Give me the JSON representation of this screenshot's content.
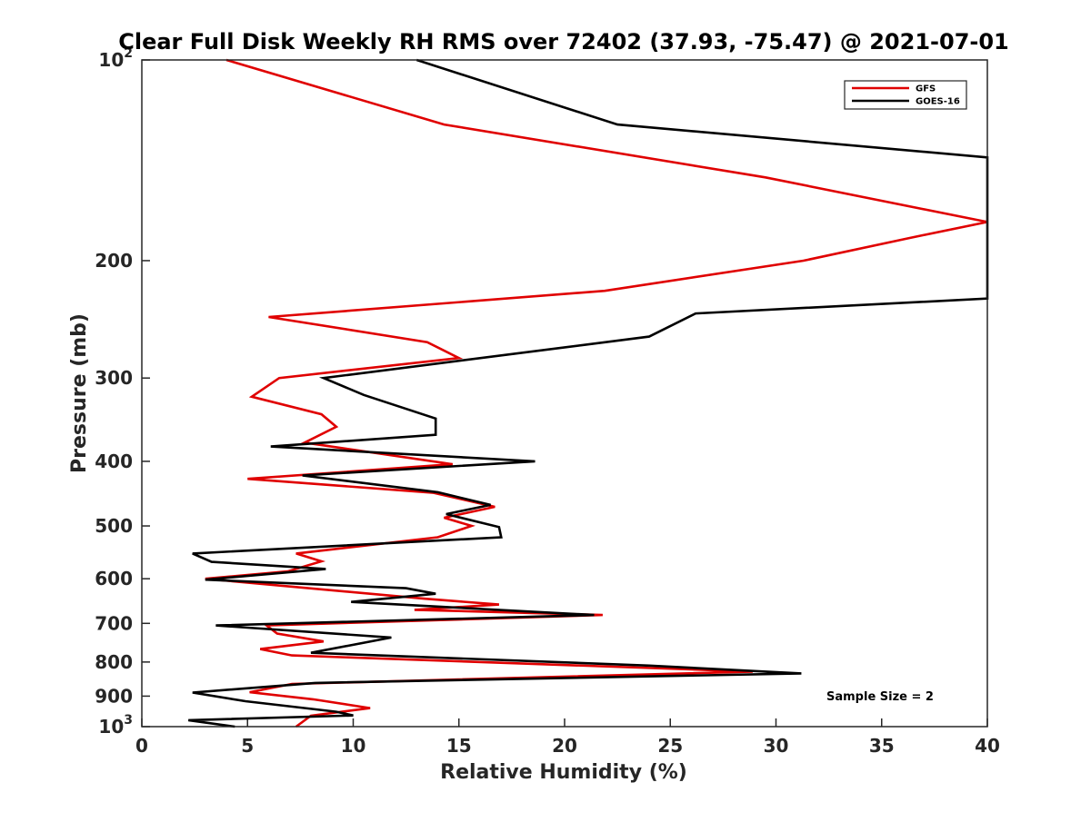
{
  "chart_data": {
    "type": "line",
    "title": "Clear Full Disk Weekly RH RMS over 72402 (37.93, -75.47) @ 2021-07-01",
    "xlabel": "Relative Humidity (%)",
    "ylabel": "Pressure (mb)",
    "xlim": [
      0,
      40
    ],
    "ylim": [
      100,
      1000
    ],
    "yscale": "log",
    "yreversed": true,
    "x_ticks": [
      0,
      5,
      10,
      15,
      20,
      25,
      30,
      35,
      40
    ],
    "x_tick_labels": [
      "0",
      "5",
      "10",
      "15",
      "20",
      "25",
      "30",
      "35",
      "40"
    ],
    "y_ticks": [
      {
        "value": 100,
        "base": "10",
        "exp": "2"
      },
      {
        "value": 200,
        "base": "200",
        "exp": ""
      },
      {
        "value": 300,
        "base": "300",
        "exp": ""
      },
      {
        "value": 400,
        "base": "400",
        "exp": ""
      },
      {
        "value": 500,
        "base": "500",
        "exp": ""
      },
      {
        "value": 600,
        "base": "600",
        "exp": ""
      },
      {
        "value": 700,
        "base": "700",
        "exp": ""
      },
      {
        "value": 800,
        "base": "800",
        "exp": ""
      },
      {
        "value": 900,
        "base": "900",
        "exp": ""
      },
      {
        "value": 1000,
        "base": "10",
        "exp": "3"
      }
    ],
    "legend_position": "top-right",
    "annotation": "Sample Size = 2",
    "series": [
      {
        "name": "GFS",
        "color": "#e00000",
        "points": [
          [
            4.0,
            100
          ],
          [
            14.3,
            125
          ],
          [
            29.5,
            150
          ],
          [
            40.0,
            175
          ],
          [
            36.3,
            185
          ],
          [
            31.3,
            200
          ],
          [
            21.9,
            222
          ],
          [
            6.0,
            243
          ],
          [
            13.5,
            265
          ],
          [
            15.0,
            280
          ],
          [
            6.5,
            300
          ],
          [
            5.2,
            320
          ],
          [
            8.5,
            340
          ],
          [
            9.2,
            355
          ],
          [
            7.7,
            375
          ],
          [
            14.7,
            404
          ],
          [
            5.0,
            425
          ],
          [
            13.8,
            446
          ],
          [
            16.7,
            468
          ],
          [
            14.3,
            486
          ],
          [
            15.6,
            500
          ],
          [
            14.0,
            520
          ],
          [
            7.3,
            550
          ],
          [
            8.5,
            565
          ],
          [
            6.9,
            585
          ],
          [
            3.0,
            600
          ],
          [
            13.4,
            643
          ],
          [
            16.9,
            656
          ],
          [
            12.9,
            668
          ],
          [
            21.8,
            680
          ],
          [
            5.9,
            705
          ],
          [
            6.4,
            725
          ],
          [
            8.6,
            745
          ],
          [
            5.6,
            765
          ],
          [
            7.1,
            782
          ],
          [
            28.9,
            827
          ],
          [
            7.1,
            863
          ],
          [
            5.1,
            888
          ],
          [
            8.1,
            910
          ],
          [
            10.8,
            938
          ],
          [
            8.0,
            963
          ],
          [
            7.3,
            1000
          ]
        ]
      },
      {
        "name": "GOES-16",
        "color": "#000000",
        "points": [
          [
            13.0,
            100
          ],
          [
            22.5,
            125
          ],
          [
            40.0,
            140
          ],
          [
            40.0,
            228
          ],
          [
            26.2,
            240
          ],
          [
            24.0,
            260
          ],
          [
            8.6,
            300
          ],
          [
            10.5,
            318
          ],
          [
            13.9,
            345
          ],
          [
            13.9,
            365
          ],
          [
            6.1,
            380
          ],
          [
            18.6,
            400
          ],
          [
            7.6,
            420
          ],
          [
            14.0,
            445
          ],
          [
            16.5,
            465
          ],
          [
            14.4,
            480
          ],
          [
            16.9,
            502
          ],
          [
            17.0,
            520
          ],
          [
            2.4,
            550
          ],
          [
            3.3,
            566
          ],
          [
            8.7,
            580
          ],
          [
            3.0,
            602
          ],
          [
            12.5,
            620
          ],
          [
            13.9,
            632
          ],
          [
            9.9,
            650
          ],
          [
            21.4,
            680
          ],
          [
            3.5,
            705
          ],
          [
            11.8,
            735
          ],
          [
            8.0,
            775
          ],
          [
            24.0,
            810
          ],
          [
            31.2,
            832
          ],
          [
            8.2,
            860
          ],
          [
            2.4,
            889
          ],
          [
            4.9,
            916
          ],
          [
            9.2,
            950
          ],
          [
            10.0,
            962
          ],
          [
            2.2,
            978
          ],
          [
            4.4,
            1000
          ]
        ]
      }
    ]
  }
}
